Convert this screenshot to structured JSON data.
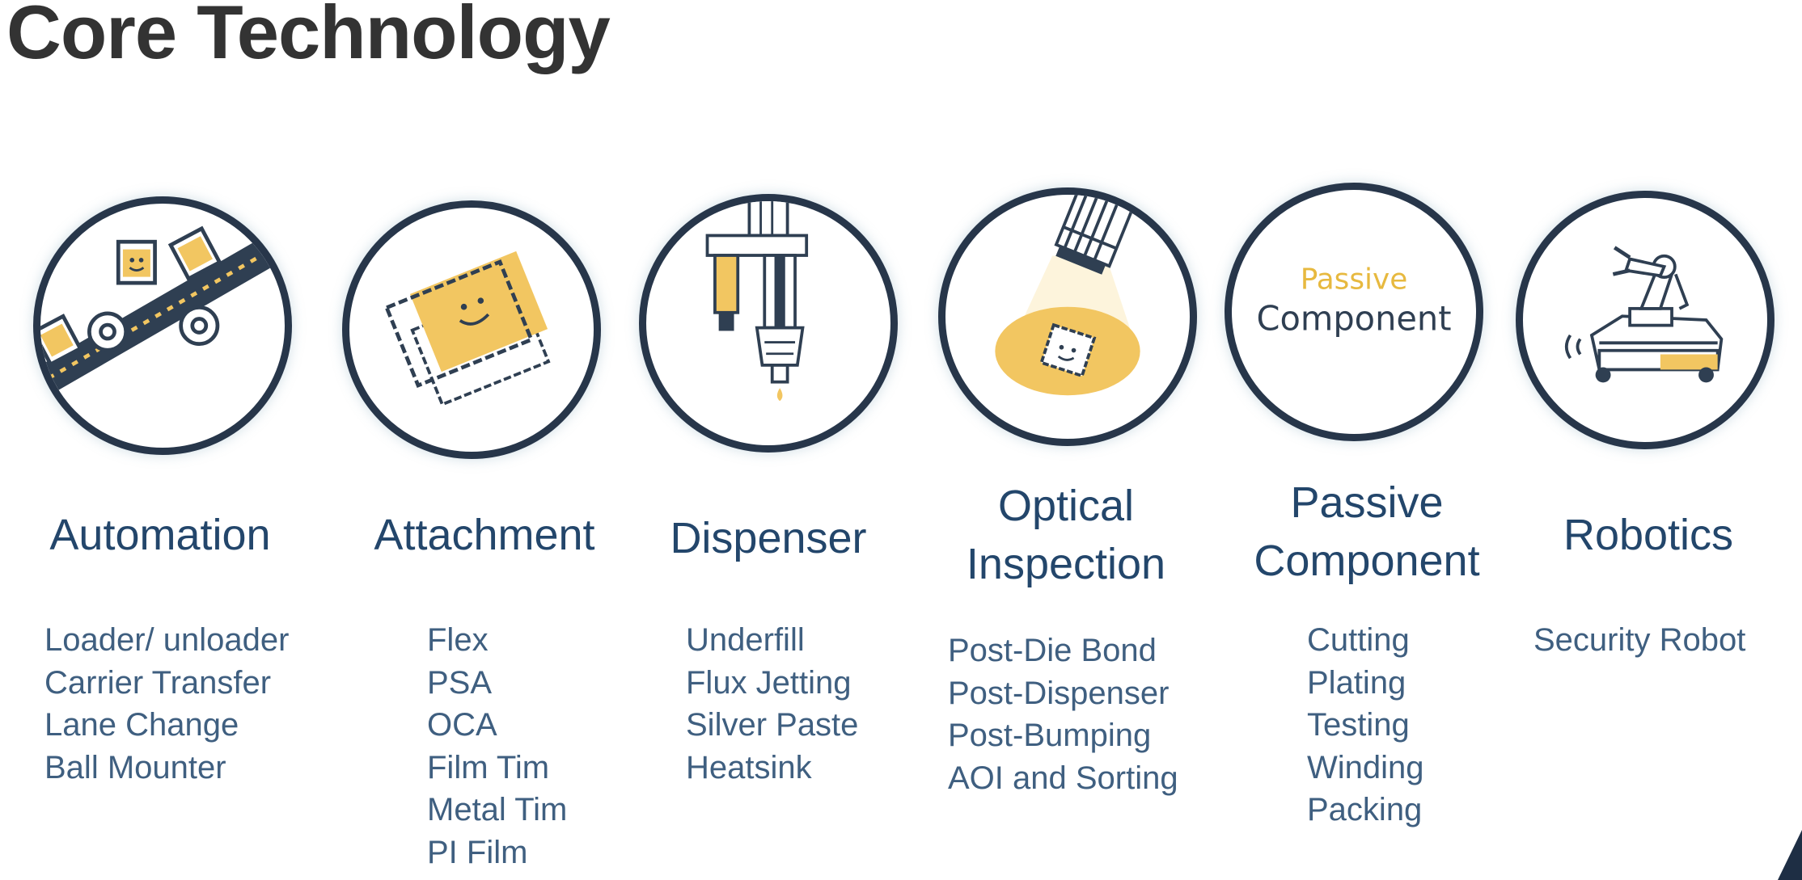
{
  "title": "Core Technology",
  "colors": {
    "ring": "#27364a",
    "accent": "#f2c661",
    "title_text": "#23466b",
    "item_text": "#3f5f80"
  },
  "columns": [
    {
      "icon": "conveyor-icon",
      "title": "Automation",
      "items": [
        "Loader/ unloader",
        "Carrier Transfer",
        "Lane Change",
        "Ball Mounter"
      ]
    },
    {
      "icon": "film-attach-icon",
      "title": "Attachment",
      "items": [
        "Flex",
        "PSA",
        "OCA",
        "Film Tim",
        "Metal Tim",
        "PI Film"
      ]
    },
    {
      "icon": "dispenser-icon",
      "title": "Dispenser",
      "items": [
        "Underfill",
        "Flux Jetting",
        "Silver Paste",
        "Heatsink"
      ]
    },
    {
      "icon": "camera-inspection-icon",
      "title_line1": "Optical",
      "title_line2": "Inspection",
      "items": [
        "Post-Die Bond",
        "Post-Dispenser",
        "Post-Bumping",
        "AOI and Sorting"
      ]
    },
    {
      "icon": "passive-component-icon",
      "icon_text_line1": "Passive",
      "icon_text_line2": "Component",
      "title_line1": "Passive",
      "title_line2": "Component",
      "items": [
        "Cutting",
        "Plating",
        "Testing",
        "Winding",
        "Packing"
      ]
    },
    {
      "icon": "robot-arm-icon",
      "title": "Robotics",
      "items": [
        "Security Robot"
      ]
    }
  ]
}
